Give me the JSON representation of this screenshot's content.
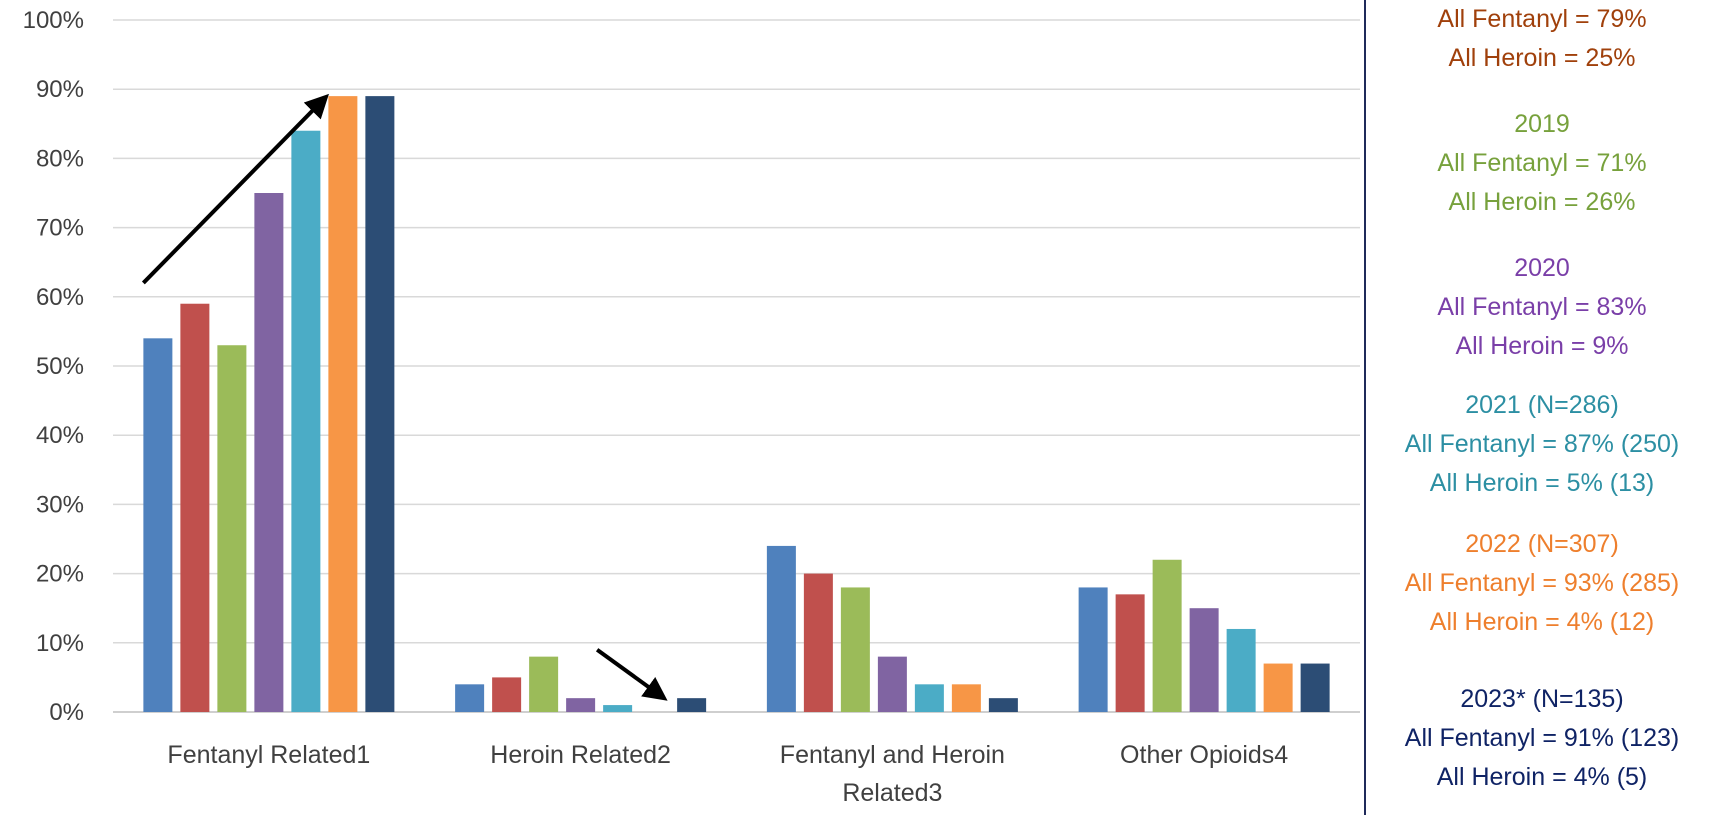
{
  "chart_data": {
    "type": "bar",
    "categories": [
      "Fentanyl Related1",
      "Heroin Related2",
      "Fentanyl and Heroin Related3",
      "Other Opioids4"
    ],
    "ylim": [
      0,
      100
    ],
    "yticks": [
      "0%",
      "10%",
      "20%",
      "30%",
      "40%",
      "50%",
      "60%",
      "70%",
      "80%",
      "90%",
      "100%"
    ],
    "grid": true,
    "series": [
      {
        "color": "#4f81bd",
        "values": [
          54,
          4,
          24,
          18
        ]
      },
      {
        "color": "#c0504d",
        "values": [
          59,
          5,
          20,
          17
        ]
      },
      {
        "color": "#9bbb59",
        "values": [
          53,
          8,
          18,
          22
        ]
      },
      {
        "color": "#8064a2",
        "values": [
          75,
          2,
          8,
          15
        ]
      },
      {
        "color": "#4bacc6",
        "values": [
          84,
          1,
          4,
          12
        ]
      },
      {
        "color": "#f79646",
        "values": [
          89,
          0,
          4,
          7
        ]
      },
      {
        "color": "#2c4d75",
        "values": [
          89,
          2,
          2,
          7
        ]
      }
    ],
    "annotations": [
      "upward arrow over Fentanyl Related1 bars",
      "downward arrow over Heroin Related2 bars"
    ]
  },
  "side_panel": [
    {
      "color": "#a0400b",
      "lines": [
        "All Fentanyl = 79%",
        "All Heroin = 25%"
      ]
    },
    {
      "color": "#77a13c",
      "lines": [
        "2019",
        "All Fentanyl = 71%",
        "All Heroin = 26%"
      ]
    },
    {
      "color": "#7a3fa8",
      "lines": [
        "2020",
        "All Fentanyl = 83%",
        "All Heroin = 9%"
      ]
    },
    {
      "color": "#2c8fa3",
      "lines": [
        "2021 (N=286)",
        "All Fentanyl = 87% (250)",
        "All Heroin = 5% (13)"
      ]
    },
    {
      "color": "#ee7f2d",
      "lines": [
        "2022 (N=307)",
        "All Fentanyl = 93% (285)",
        "All Heroin = 4% (12)"
      ]
    },
    {
      "color": "#0f2365",
      "lines": [
        "2023* (N=135)",
        "All Fentanyl = 91% (123)",
        "All Heroin = 4% (5)"
      ]
    }
  ]
}
